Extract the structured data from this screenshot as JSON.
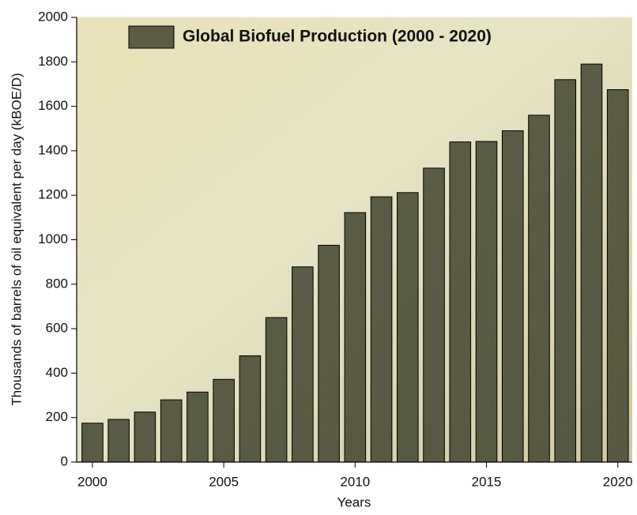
{
  "chart_data": {
    "type": "bar",
    "x": [
      2000,
      2001,
      2002,
      2003,
      2004,
      2005,
      2006,
      2007,
      2008,
      2009,
      2010,
      2011,
      2012,
      2013,
      2014,
      2015,
      2016,
      2017,
      2018,
      2019,
      2020
    ],
    "series": [
      {
        "name": "Global Biofuel Production (2000 - 2020)",
        "color": "#3a3d2a",
        "values": [
          175,
          192,
          225,
          280,
          315,
          372,
          478,
          650,
          878,
          975,
          1122,
          1193,
          1212,
          1322,
          1440,
          1442,
          1490,
          1560,
          1720,
          1790,
          1675
        ]
      }
    ],
    "x_label": "Years",
    "y_label": "Thousands of barrels of oil equivalent per day (kBOE/D)",
    "xlim": [
      1999.4,
      2020.55
    ],
    "xticks": [
      2000,
      2005,
      2010,
      2015,
      2020
    ],
    "ylim": [
      0,
      2000
    ],
    "yticks": [
      0,
      200,
      400,
      600,
      800,
      1000,
      1200,
      1400,
      1600,
      1800,
      2000
    ],
    "legend": "upper center"
  }
}
